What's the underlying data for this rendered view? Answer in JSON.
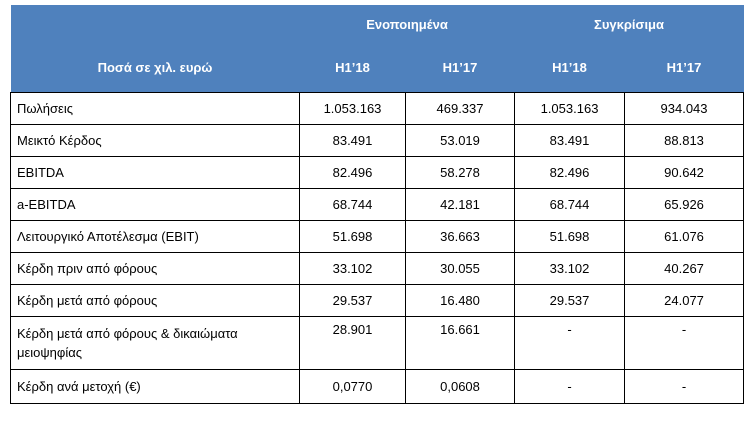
{
  "table": {
    "group_header_1": "Ενοποιημένα",
    "group_header_2": "Συγκρίσιμα",
    "label_header": "Ποσά  σε χιλ. ευρώ",
    "columns": [
      "H1’18",
      "H1’17",
      "H1’18",
      "H1’17"
    ],
    "rows": [
      {
        "label": "Πωλήσεις",
        "values": [
          "1.053.163",
          "469.337",
          "1.053.163",
          "934.043"
        ]
      },
      {
        "label": "Μεικτό Κέρδος",
        "values": [
          "83.491",
          "53.019",
          "83.491",
          "88.813"
        ]
      },
      {
        "label": "EBITDA",
        "values": [
          "82.496",
          "58.278",
          "82.496",
          "90.642"
        ]
      },
      {
        "label": "a-EBITDA",
        "values": [
          "68.744",
          "42.181",
          "68.744",
          "65.926"
        ]
      },
      {
        "label": "Λειτουργικό Αποτέλεσμα (EBIT)",
        "values": [
          "51.698",
          "36.663",
          "51.698",
          "61.076"
        ]
      },
      {
        "label": "Κέρδη πριν από φόρους",
        "values": [
          "33.102",
          "30.055",
          "33.102",
          "40.267"
        ]
      },
      {
        "label": "Κέρδη μετά από φόρους",
        "values": [
          "29.537",
          "16.480",
          "29.537",
          "24.077"
        ]
      },
      {
        "label": "Κέρδη μετά από φόρους & δικαιώματα μειοψηφίας",
        "values": [
          "28.901",
          "16.661",
          "-",
          "-"
        ]
      },
      {
        "label": "Κέρδη ανά μετοχή (€)",
        "values": [
          "0,0770",
          "0,0608",
          "-",
          "-"
        ]
      }
    ]
  },
  "colors": {
    "header_bg": "#4f81bd",
    "header_text": "#ffffff",
    "border": "#000000"
  }
}
